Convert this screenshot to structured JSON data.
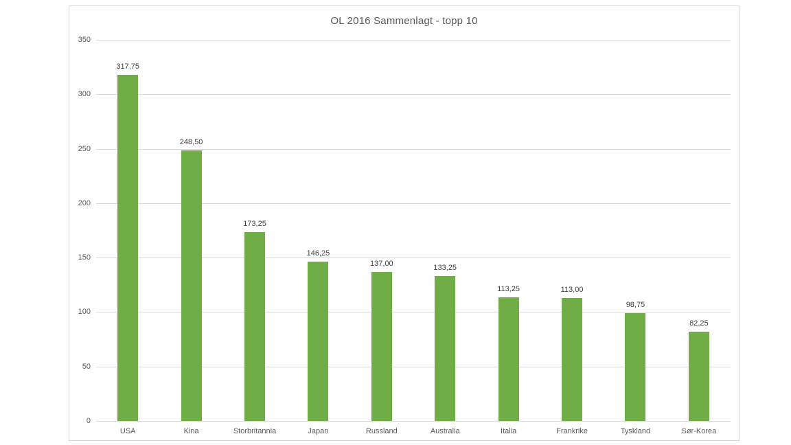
{
  "chart_data": {
    "type": "bar",
    "title": "OL 2016 Sammenlagt - topp 10",
    "xlabel": "",
    "ylabel": "",
    "categories": [
      "USA",
      "Kina",
      "Storbritannia",
      "Japan",
      "Russland",
      "Australia",
      "Italia",
      "Frankrike",
      "Tyskland",
      "Sør-Korea"
    ],
    "values": [
      317.75,
      248.5,
      173.25,
      146.25,
      137.0,
      133.25,
      113.25,
      113.0,
      98.75,
      82.25
    ],
    "value_labels": [
      "317,75",
      "248,50",
      "173,25",
      "146,25",
      "137,00",
      "133,25",
      "113,25",
      "113,00",
      "98,75",
      "82,25"
    ],
    "ylim": [
      0,
      350
    ],
    "yticks": [
      0,
      50,
      100,
      150,
      200,
      250,
      300,
      350
    ],
    "grid": true,
    "legend": false,
    "colors": {
      "bar": "#70AD47",
      "gridline": "#d9d9d9",
      "axis_text": "#595959",
      "data_label_text": "#404040",
      "title_text": "#595959",
      "card_border": "#d7d7d7",
      "background": "#ffffff"
    }
  }
}
